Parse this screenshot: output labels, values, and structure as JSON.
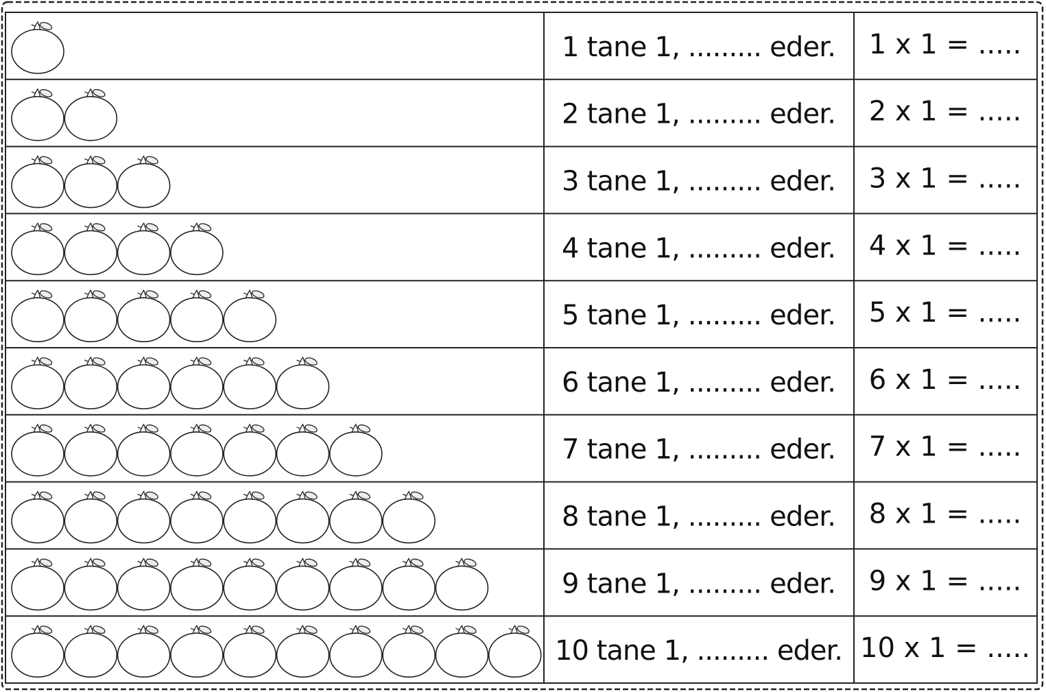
{
  "rows": [
    {
      "fruits": 1,
      "sentence": "1 tane 1, ......... eder.",
      "equation": "1 x 1 = ....."
    },
    {
      "fruits": 2,
      "sentence": "2 tane 1, ......... eder.",
      "equation": "2 x 1 = ....."
    },
    {
      "fruits": 3,
      "sentence": "3 tane 1, ......... eder.",
      "equation": "3 x 1 = ....."
    },
    {
      "fruits": 4,
      "sentence": "4 tane 1, ......... eder.",
      "equation": "4 x 1 = ....."
    },
    {
      "fruits": 5,
      "sentence": "5 tane 1, ......... eder.",
      "equation": "5 x 1 = ....."
    },
    {
      "fruits": 6,
      "sentence": "6 tane 1, ......... eder.",
      "equation": "6 x 1 = ....."
    },
    {
      "fruits": 7,
      "sentence": "7 tane 1, ......... eder.",
      "equation": "7 x 1 = ....."
    },
    {
      "fruits": 8,
      "sentence": "8 tane 1, ......... eder.",
      "equation": "8 x 1 = ....."
    },
    {
      "fruits": 9,
      "sentence": "9 tane 1, ......... eder.",
      "equation": "9 x 1 = ....."
    },
    {
      "fruits": 10,
      "sentence": "10 tane 1, ......... eder.",
      "equation": "10 x 1 = ....."
    }
  ]
}
